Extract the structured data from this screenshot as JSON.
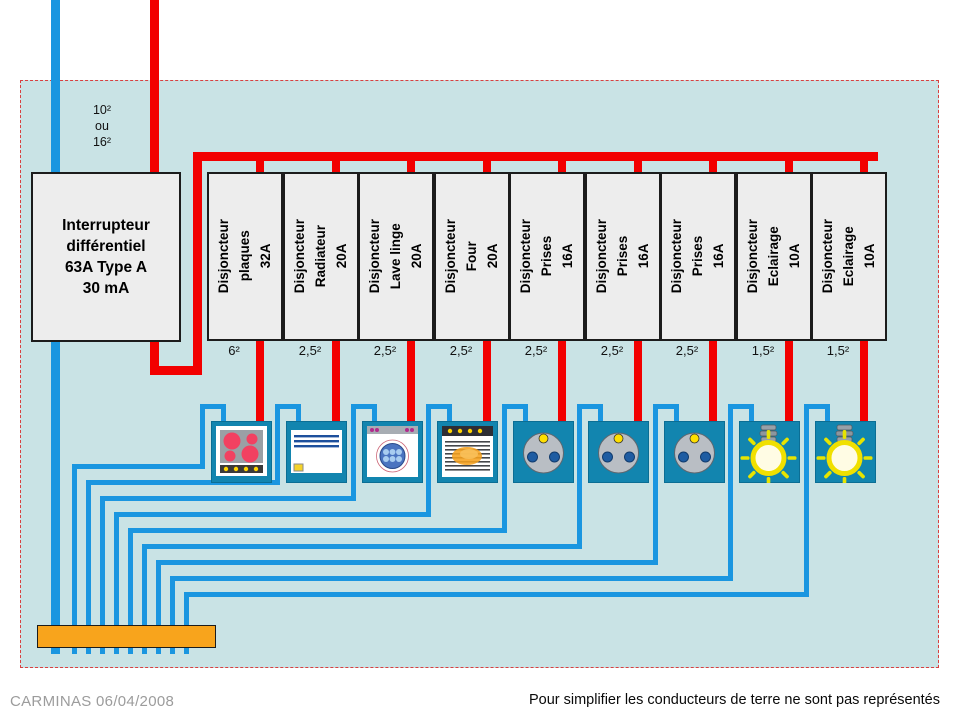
{
  "supply": {
    "label": "10²\nou\n16²"
  },
  "main_switch": {
    "label": "Interrupteur\ndifférentiel\n63A Type A\n30 mA"
  },
  "breakers": [
    {
      "label": "Disjoncteur\nplaques\n32A",
      "gauge": "6²",
      "appliance": "cooktop"
    },
    {
      "label": "Disjoncteur\nRadiateur\n20A",
      "gauge": "2,5²",
      "appliance": "radiator"
    },
    {
      "label": "Disjoncteur\nLave linge\n20A",
      "gauge": "2,5²",
      "appliance": "washer"
    },
    {
      "label": "Disjoncteur\nFour\n20A",
      "gauge": "2,5²",
      "appliance": "oven"
    },
    {
      "label": "Disjoncteur\nPrises\n16A",
      "gauge": "2,5²",
      "appliance": "socket"
    },
    {
      "label": "Disjoncteur\nPrises\n16A",
      "gauge": "2,5²",
      "appliance": "socket"
    },
    {
      "label": "Disjoncteur\nPrises\n16A",
      "gauge": "2,5²",
      "appliance": "socket"
    },
    {
      "label": "Disjoncteur\nEclairage\n10A",
      "gauge": "1,5²",
      "appliance": "light"
    },
    {
      "label": "Disjoncteur\nEclairage\n10A",
      "gauge": "1,5²",
      "appliance": "light"
    }
  ],
  "footer": {
    "credit": "CARMINAS 06/04/2008",
    "note": "Pour simplifier les conducteurs de terre ne sont pas représentés"
  },
  "colors": {
    "wire_live_red": "#f20000",
    "wire_neutral_blue": "#1a96e0",
    "panel_background": "#c9e3e5",
    "panel_dashed_border": "#d94040",
    "device_teal": "#1285af",
    "busbar_orange": "#f8a41c",
    "breaker_box_fill": "#ededed"
  }
}
